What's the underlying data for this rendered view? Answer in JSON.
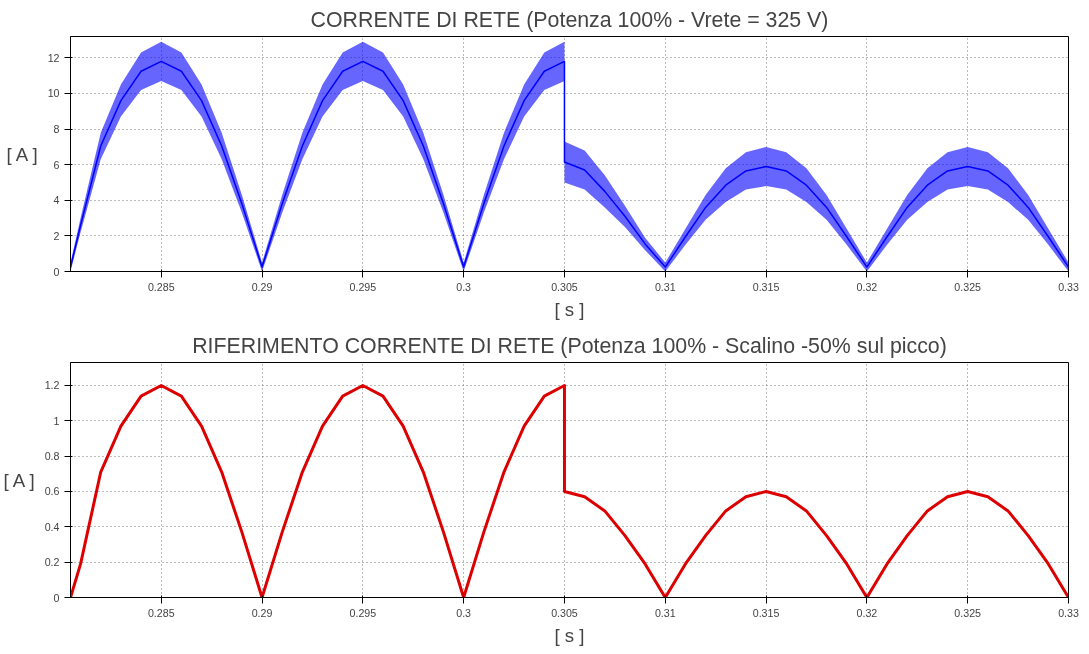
{
  "chart_data": [
    {
      "type": "line",
      "title": "CORRENTE DI RETE (Potenza 100% - Vrete = 325 V)",
      "xlabel": "[ s ]",
      "ylabel": "[ A ]",
      "x": [
        0.2805,
        0.281,
        0.282,
        0.283,
        0.284,
        0.285,
        0.286,
        0.287,
        0.288,
        0.289,
        0.29,
        0.291,
        0.292,
        0.293,
        0.294,
        0.295,
        0.296,
        0.297,
        0.298,
        0.299,
        0.3,
        0.301,
        0.302,
        0.303,
        0.304,
        0.305,
        0.305,
        0.306,
        0.307,
        0.308,
        0.309,
        0.31,
        0.311,
        0.312,
        0.313,
        0.314,
        0.315,
        0.316,
        0.317,
        0.318,
        0.319,
        0.32,
        0.321,
        0.322,
        0.323,
        0.324,
        0.325,
        0.326,
        0.327,
        0.328,
        0.329,
        0.33
      ],
      "series": [
        {
          "color": "#0000ff",
          "values": [
            0.25,
            2.6,
            7.05,
            9.6,
            11.25,
            11.8,
            11.25,
            9.6,
            7.05,
            3.8,
            0.25,
            3.8,
            7.05,
            9.6,
            11.25,
            11.8,
            11.25,
            9.6,
            7.05,
            3.8,
            0.25,
            3.8,
            7.05,
            9.6,
            11.25,
            11.8,
            6.15,
            5.7,
            4.5,
            3.1,
            1.55,
            0.25,
            1.95,
            3.6,
            4.85,
            5.65,
            5.9,
            5.65,
            4.85,
            3.6,
            1.95,
            0.25,
            1.95,
            3.6,
            4.85,
            5.65,
            5.9,
            5.65,
            4.85,
            3.6,
            1.95,
            0.25
          ],
          "lower": [
            0,
            2.2,
            6.3,
            8.7,
            10.2,
            10.7,
            10.2,
            8.7,
            6.3,
            3.3,
            0,
            3.3,
            6.3,
            8.7,
            10.2,
            10.7,
            10.2,
            8.7,
            6.3,
            3.3,
            0,
            3.3,
            6.3,
            8.7,
            10.2,
            10.7,
            5.0,
            4.6,
            3.6,
            2.5,
            1.2,
            0,
            1.5,
            2.9,
            3.9,
            4.6,
            4.8,
            4.6,
            3.9,
            2.9,
            1.5,
            0,
            1.5,
            2.9,
            3.9,
            4.6,
            4.8,
            4.6,
            3.9,
            2.9,
            1.5,
            0
          ],
          "upper": [
            0.5,
            3.0,
            7.8,
            10.5,
            12.3,
            12.9,
            12.3,
            10.5,
            7.8,
            4.3,
            0.5,
            4.3,
            7.8,
            10.5,
            12.3,
            12.9,
            12.3,
            10.5,
            7.8,
            4.3,
            0.5,
            4.3,
            7.8,
            10.5,
            12.3,
            12.9,
            7.3,
            6.8,
            5.4,
            3.7,
            1.9,
            0.5,
            2.4,
            4.3,
            5.8,
            6.7,
            7.0,
            6.7,
            5.8,
            4.3,
            2.4,
            0.5,
            2.4,
            4.3,
            5.8,
            6.7,
            7.0,
            6.7,
            5.8,
            4.3,
            2.4,
            0.5
          ]
        }
      ],
      "xlim": [
        0.2805,
        0.33
      ],
      "xticks": [
        0.285,
        0.29,
        0.295,
        0.3,
        0.305,
        0.31,
        0.315,
        0.32,
        0.325,
        0.33
      ],
      "ylim": [
        0,
        13.2
      ],
      "yticks": [
        0,
        2,
        4,
        6,
        8,
        10,
        12
      ],
      "grid": true,
      "line_style": "solid"
    },
    {
      "type": "line",
      "title": "RIFERIMENTO CORRENTE DI RETE (Potenza 100% - Scalino -50% sul picco)",
      "xlabel": "[ s ]",
      "ylabel": "[ A ]",
      "x": [
        0.2805,
        0.281,
        0.282,
        0.283,
        0.284,
        0.285,
        0.286,
        0.287,
        0.288,
        0.289,
        0.29,
        0.291,
        0.292,
        0.293,
        0.294,
        0.295,
        0.296,
        0.297,
        0.298,
        0.299,
        0.3,
        0.301,
        0.302,
        0.303,
        0.304,
        0.305,
        0.305,
        0.306,
        0.307,
        0.308,
        0.309,
        0.31,
        0.311,
        0.312,
        0.313,
        0.314,
        0.315,
        0.316,
        0.317,
        0.318,
        0.319,
        0.32,
        0.321,
        0.322,
        0.323,
        0.324,
        0.325,
        0.326,
        0.327,
        0.328,
        0.329,
        0.33
      ],
      "series": [
        {
          "color": "#dd0000",
          "values": [
            0,
            0.19,
            0.71,
            0.97,
            1.14,
            1.2,
            1.14,
            0.97,
            0.71,
            0.37,
            0,
            0.37,
            0.71,
            0.97,
            1.14,
            1.2,
            1.14,
            0.97,
            0.71,
            0.37,
            0,
            0.37,
            0.71,
            0.97,
            1.14,
            1.2,
            0.6,
            0.57,
            0.49,
            0.35,
            0.19,
            0,
            0.19,
            0.35,
            0.49,
            0.57,
            0.6,
            0.57,
            0.49,
            0.35,
            0.19,
            0,
            0.19,
            0.35,
            0.49,
            0.57,
            0.6,
            0.57,
            0.49,
            0.35,
            0.19,
            0
          ]
        }
      ],
      "xlim": [
        0.2805,
        0.33
      ],
      "xticks": [
        0.285,
        0.29,
        0.295,
        0.3,
        0.305,
        0.31,
        0.315,
        0.32,
        0.325,
        0.33
      ],
      "ylim": [
        0,
        1.33
      ],
      "yticks": [
        0,
        0.2,
        0.4,
        0.6,
        0.8,
        1,
        1.2
      ],
      "grid": true,
      "line_style": "solid"
    }
  ]
}
